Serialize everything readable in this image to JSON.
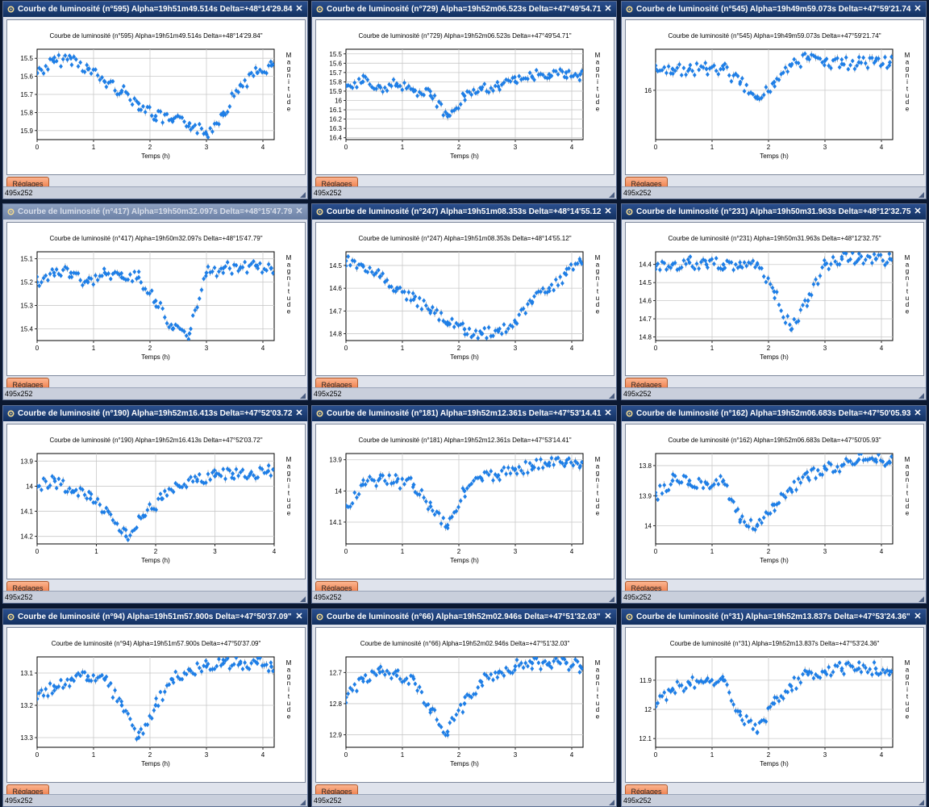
{
  "app": {
    "settings_label": "Réglages",
    "status_size": "495x252",
    "close_glyph": "✕",
    "x_axis_label": "Temps (h)",
    "y_axis_label": "Magnitude",
    "point_color": "#1e7ee6"
  },
  "panels": [
    {
      "title": "Courbe de luminosité (n°595) Alpha=19h51m49.514s Delta=+48°14'29.84\"",
      "plot_title": "Courbe de luminosité (n°595) Alpha=19h51m49.514s Delta=+48°14'29.84\"",
      "active": true
    },
    {
      "title": "Courbe de luminosité (n°729) Alpha=19h52m06.523s Delta=+47°49'54.71\"",
      "plot_title": "Courbe de luminosité (n°729) Alpha=19h52m06.523s Delta=+47°49'54.71\"",
      "active": true
    },
    {
      "title": "Courbe de luminosité (n°545) Alpha=19h49m59.073s Delta=+47°59'21.74\"",
      "plot_title": "Courbe de luminosité (n°545) Alpha=19h49m59.073s Delta=+47°59'21.74\"",
      "active": true
    },
    {
      "title": "Courbe de luminosité (n°417) Alpha=19h50m32.097s Delta=+48°15'47.79\"",
      "plot_title": "Courbe de luminosité (n°417) Alpha=19h50m32.097s Delta=+48°15'47.79\"",
      "active": false
    },
    {
      "title": "Courbe de luminosité (n°247) Alpha=19h51m08.353s Delta=+48°14'55.12\"",
      "plot_title": "Courbe de luminosité (n°247) Alpha=19h51m08.353s Delta=+48°14'55.12\"",
      "active": true
    },
    {
      "title": "Courbe de luminosité (n°231) Alpha=19h50m31.963s Delta=+48°12'32.75\"",
      "plot_title": "Courbe de luminosité (n°231) Alpha=19h50m31.963s Delta=+48°12'32.75\"",
      "active": true
    },
    {
      "title": "Courbe de luminosité (n°190) Alpha=19h52m16.413s Delta=+47°52'03.72\"",
      "plot_title": "Courbe de luminosité (n°190) Alpha=19h52m16.413s Delta=+47°52'03.72\"",
      "active": true
    },
    {
      "title": "Courbe de luminosité (n°181) Alpha=19h52m12.361s Delta=+47°53'14.41\"",
      "plot_title": "Courbe de luminosité (n°181) Alpha=19h52m12.361s Delta=+47°53'14.41\"",
      "active": true
    },
    {
      "title": "Courbe de luminosité (n°162) Alpha=19h52m06.683s Delta=+47°50'05.93\"",
      "plot_title": "Courbe de luminosité (n°162) Alpha=19h52m06.683s Delta=+47°50'05.93\"",
      "active": true
    },
    {
      "title": "Courbe de luminosité (n°94) Alpha=19h51m57.900s Delta=+47°50'37.09\"",
      "plot_title": "Courbe de luminosité (n°94) Alpha=19h51m57.900s Delta=+47°50'37.09\"",
      "active": true
    },
    {
      "title": "Courbe de luminosité (n°66) Alpha=19h52m02.946s Delta=+47°51'32.03\"",
      "plot_title": "Courbe de luminosité (n°66) Alpha=19h52m02.946s Delta=+47°51'32.03\"",
      "active": true
    },
    {
      "title": "Courbe de luminosité (n°31) Alpha=19h52m13.837s Delta=+47°53'24.36\"",
      "plot_title": "Courbe de luminosité (n°31) Alpha=19h52m13.837s Delta=+47°53'24.36\"",
      "active": true
    }
  ],
  "chart_data": [
    {
      "type": "scatter",
      "xlim": [
        0,
        4.2
      ],
      "ylim": [
        15.45,
        15.95
      ],
      "y_inverted": true,
      "x_ticks": [
        "0",
        "1",
        "2",
        "3",
        "4"
      ],
      "y_ticks": [
        "15.5",
        "15.6",
        "15.7",
        "15.8",
        "15.9"
      ],
      "xlabel": "Temps (h)",
      "ylabel": "Magnitude",
      "x": [
        0,
        0.3,
        0.6,
        0.9,
        1.2,
        1.5,
        1.8,
        2.1,
        2.4,
        2.7,
        3.0,
        3.3,
        3.6,
        3.9,
        4.15
      ],
      "y": [
        15.58,
        15.52,
        15.5,
        15.56,
        15.63,
        15.68,
        15.75,
        15.82,
        15.85,
        15.86,
        15.92,
        15.8,
        15.65,
        15.58,
        15.54
      ]
    },
    {
      "type": "scatter",
      "xlim": [
        0,
        4.2
      ],
      "ylim": [
        15.45,
        16.42
      ],
      "y_inverted": true,
      "x_ticks": [
        "0",
        "1",
        "2",
        "3",
        "4"
      ],
      "y_ticks": [
        "15.5",
        "15.6",
        "15.7",
        "15.8",
        "15.9",
        "16",
        "16.1",
        "16.2",
        "16.3",
        "16.4"
      ],
      "xlabel": "Temps (h)",
      "ylabel": "Magnitude",
      "x": [
        0,
        0.3,
        0.6,
        0.9,
        1.2,
        1.5,
        1.8,
        2.1,
        2.4,
        2.7,
        3.0,
        3.3,
        3.6,
        3.9,
        4.15
      ],
      "y": [
        15.85,
        15.8,
        15.85,
        15.82,
        15.9,
        15.95,
        16.15,
        15.95,
        15.88,
        15.85,
        15.8,
        15.75,
        15.72,
        15.7,
        15.72
      ]
    },
    {
      "type": "scatter",
      "xlim": [
        0,
        4.2
      ],
      "ylim": [
        15.75,
        16.3
      ],
      "y_inverted": true,
      "x_ticks": [
        "0",
        "1",
        "2",
        "3",
        "4"
      ],
      "y_ticks": [
        "16"
      ],
      "xlabel": "Temps (h)",
      "ylabel": "Magnitude",
      "x": [
        0,
        0.3,
        0.6,
        0.9,
        1.2,
        1.5,
        1.8,
        2.1,
        2.4,
        2.7,
        3.0,
        3.3,
        3.6,
        3.9,
        4.15
      ],
      "y": [
        15.87,
        15.87,
        15.87,
        15.87,
        15.87,
        15.95,
        16.05,
        15.95,
        15.85,
        15.8,
        15.82,
        15.84,
        15.83,
        15.82,
        15.83
      ]
    },
    {
      "type": "scatter",
      "xlim": [
        0,
        4.2
      ],
      "ylim": [
        15.07,
        15.45
      ],
      "y_inverted": true,
      "x_ticks": [
        "0",
        "1",
        "2",
        "3",
        "4"
      ],
      "y_ticks": [
        "15.1",
        "15.2",
        "15.3",
        "15.4"
      ],
      "xlabel": "Temps (h)",
      "ylabel": "Magnitude",
      "x": [
        0,
        0.3,
        0.6,
        0.9,
        1.2,
        1.5,
        1.8,
        2.1,
        2.4,
        2.7,
        3.0,
        3.3,
        3.6,
        3.9,
        4.15
      ],
      "y": [
        15.2,
        15.16,
        15.16,
        15.2,
        15.16,
        15.18,
        15.18,
        15.28,
        15.4,
        15.42,
        15.16,
        15.14,
        15.14,
        15.13,
        15.14
      ]
    },
    {
      "type": "scatter",
      "xlim": [
        0,
        4.2
      ],
      "ylim": [
        14.44,
        14.83
      ],
      "y_inverted": true,
      "x_ticks": [
        "0",
        "1",
        "2",
        "3",
        "4"
      ],
      "y_ticks": [
        "14.5",
        "14.6",
        "14.7",
        "14.8"
      ],
      "xlabel": "Temps (h)",
      "ylabel": "Magnitude",
      "x": [
        0,
        0.3,
        0.6,
        0.9,
        1.2,
        1.5,
        1.8,
        2.1,
        2.4,
        2.7,
        3.0,
        3.3,
        3.6,
        3.9,
        4.15
      ],
      "y": [
        14.48,
        14.5,
        14.55,
        14.6,
        14.65,
        14.7,
        14.75,
        14.78,
        14.8,
        14.79,
        14.75,
        14.66,
        14.6,
        14.54,
        14.48
      ]
    },
    {
      "type": "scatter",
      "xlim": [
        0,
        4.2
      ],
      "ylim": [
        14.33,
        14.82
      ],
      "y_inverted": true,
      "x_ticks": [
        "0",
        "1",
        "2",
        "3",
        "4"
      ],
      "y_ticks": [
        "14.4",
        "14.5",
        "14.6",
        "14.7",
        "14.8"
      ],
      "xlabel": "Temps (h)",
      "ylabel": "Magnitude",
      "x": [
        0,
        0.3,
        0.6,
        0.9,
        1.2,
        1.5,
        1.8,
        2.1,
        2.4,
        2.7,
        3.0,
        3.3,
        3.6,
        3.9,
        4.15
      ],
      "y": [
        14.41,
        14.4,
        14.39,
        14.4,
        14.4,
        14.41,
        14.4,
        14.55,
        14.76,
        14.6,
        14.4,
        14.37,
        14.37,
        14.37,
        14.37
      ]
    },
    {
      "type": "scatter",
      "xlim": [
        0,
        4
      ],
      "ylim": [
        13.87,
        14.23
      ],
      "y_inverted": true,
      "x_ticks": [
        "0",
        "1",
        "2",
        "3",
        "4"
      ],
      "y_ticks": [
        "13.9",
        "14",
        "14.1",
        "14.2"
      ],
      "xlabel": "Temps (h)",
      "ylabel": "Magnitude",
      "x": [
        0,
        0.3,
        0.6,
        0.9,
        1.2,
        1.5,
        1.8,
        2.1,
        2.4,
        2.7,
        3.0,
        3.3,
        3.6,
        3.9
      ],
      "y": [
        14,
        13.98,
        14.02,
        14.05,
        14.1,
        14.2,
        14.12,
        14.05,
        14,
        13.98,
        13.96,
        13.95,
        13.95,
        13.94
      ]
    },
    {
      "type": "scatter",
      "xlim": [
        0,
        4.2
      ],
      "ylim": [
        13.88,
        14.17
      ],
      "y_inverted": true,
      "x_ticks": [
        "0",
        "1",
        "2",
        "3",
        "4"
      ],
      "y_ticks": [
        "13.9",
        "14",
        "14.1"
      ],
      "xlabel": "Temps (h)",
      "ylabel": "Magnitude",
      "x": [
        0,
        0.3,
        0.6,
        0.9,
        1.2,
        1.5,
        1.8,
        2.1,
        2.4,
        2.7,
        3.0,
        3.3,
        3.6,
        3.9,
        4.15
      ],
      "y": [
        14.05,
        13.98,
        13.96,
        13.97,
        13.98,
        14.05,
        14.11,
        14,
        13.96,
        13.95,
        13.93,
        13.92,
        13.91,
        13.91,
        13.92
      ]
    },
    {
      "type": "scatter",
      "xlim": [
        0,
        4.2
      ],
      "ylim": [
        13.76,
        14.06
      ],
      "y_inverted": true,
      "x_ticks": [
        "0",
        "1",
        "2",
        "3",
        "4"
      ],
      "y_ticks": [
        "13.8",
        "13.9",
        "14"
      ],
      "xlabel": "Temps (h)",
      "ylabel": "Magnitude",
      "x": [
        0,
        0.3,
        0.6,
        0.9,
        1.2,
        1.5,
        1.8,
        2.1,
        2.4,
        2.7,
        3.0,
        3.3,
        3.6,
        3.9,
        4.15
      ],
      "y": [
        13.9,
        13.85,
        13.85,
        13.86,
        13.85,
        13.98,
        14,
        13.93,
        13.88,
        13.84,
        13.81,
        13.8,
        13.78,
        13.78,
        13.79
      ]
    },
    {
      "type": "scatter",
      "xlim": [
        0,
        4.2
      ],
      "ylim": [
        13.05,
        13.33
      ],
      "y_inverted": true,
      "x_ticks": [
        "0",
        "1",
        "2",
        "3",
        "4"
      ],
      "y_ticks": [
        "13.1",
        "13.2",
        "13.3"
      ],
      "xlabel": "Temps (h)",
      "ylabel": "Magnitude",
      "x": [
        0,
        0.3,
        0.6,
        0.9,
        1.2,
        1.5,
        1.8,
        2.1,
        2.4,
        2.7,
        3.0,
        3.3,
        3.6,
        3.9,
        4.15
      ],
      "y": [
        13.18,
        13.14,
        13.12,
        13.11,
        13.12,
        13.2,
        13.3,
        13.2,
        13.12,
        13.09,
        13.08,
        13.07,
        13.07,
        13.07,
        13.08
      ]
    },
    {
      "type": "scatter",
      "xlim": [
        0,
        4.2
      ],
      "ylim": [
        12.65,
        12.94
      ],
      "y_inverted": true,
      "x_ticks": [
        "0",
        "1",
        "2",
        "3",
        "4"
      ],
      "y_ticks": [
        "12.7",
        "12.8",
        "12.9"
      ],
      "xlabel": "Temps (h)",
      "ylabel": "Magnitude",
      "x": [
        0,
        0.3,
        0.6,
        0.9,
        1.2,
        1.5,
        1.8,
        2.1,
        2.4,
        2.7,
        3.0,
        3.3,
        3.6,
        3.9,
        4.15
      ],
      "y": [
        12.78,
        12.72,
        12.7,
        12.71,
        12.72,
        12.82,
        12.89,
        12.8,
        12.73,
        12.7,
        12.68,
        12.67,
        12.67,
        12.67,
        12.68
      ]
    },
    {
      "type": "scatter",
      "xlim": [
        0,
        4.2
      ],
      "ylim": [
        11.82,
        12.13
      ],
      "y_inverted": true,
      "x_ticks": [
        "0",
        "1",
        "2",
        "3",
        "4"
      ],
      "y_ticks": [
        "11.9",
        "12",
        "12.1"
      ],
      "xlabel": "Temps (h)",
      "ylabel": "Magnitude",
      "x": [
        0,
        0.3,
        0.6,
        0.9,
        1.2,
        1.5,
        1.8,
        2.1,
        2.4,
        2.7,
        3.0,
        3.3,
        3.6,
        3.9,
        4.15
      ],
      "y": [
        11.98,
        11.93,
        11.91,
        11.9,
        11.9,
        12.02,
        12.08,
        11.98,
        11.92,
        11.88,
        11.87,
        11.86,
        11.86,
        11.86,
        11.87
      ]
    }
  ]
}
